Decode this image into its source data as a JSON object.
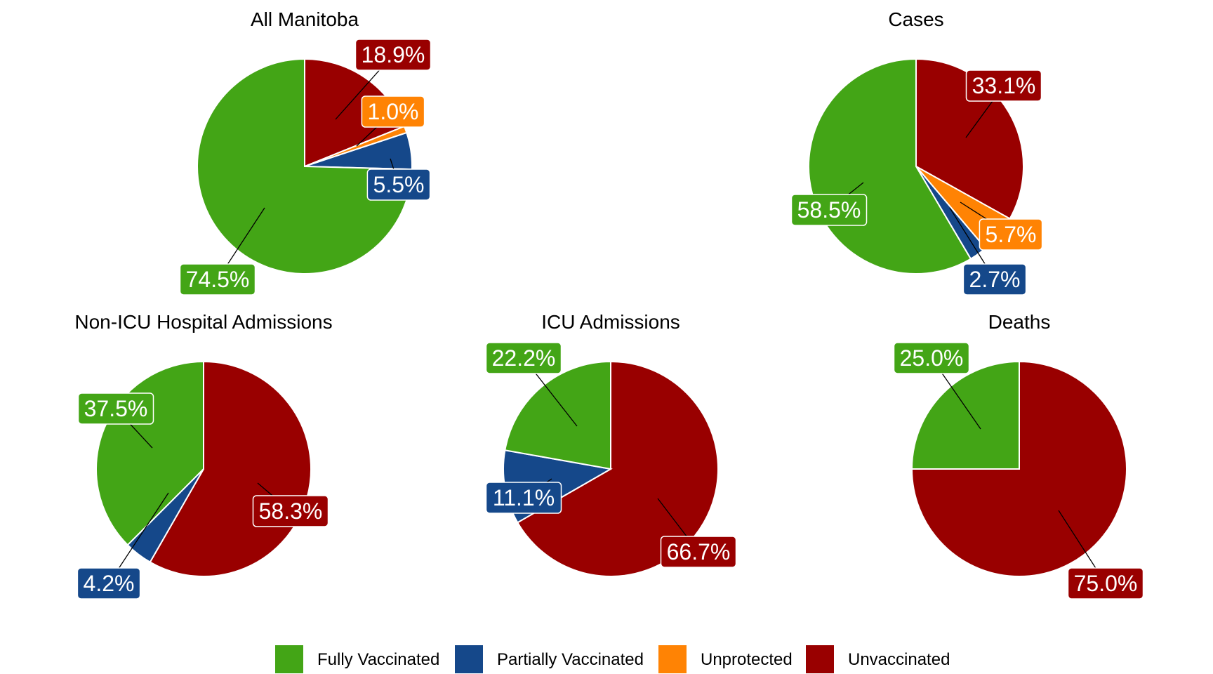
{
  "chart_data": {
    "type": "pie",
    "series_order": [
      "Fully Vaccinated",
      "Partially Vaccinated",
      "Unprotected",
      "Unvaccinated"
    ],
    "colors": {
      "Fully Vaccinated": "#43a516",
      "Partially Vaccinated": "#15488a",
      "Unprotected": "#ff8304",
      "Unvaccinated": "#990000"
    },
    "legend": {
      "position": "bottom",
      "entries": [
        "Fully Vaccinated",
        "Partially Vaccinated",
        "Unprotected",
        "Unvaccinated"
      ]
    },
    "panels": [
      {
        "title": "All Manitoba",
        "slices": [
          {
            "category": "Unvaccinated",
            "value": 18.9,
            "label": "18.9%"
          },
          {
            "category": "Unprotected",
            "value": 1.0,
            "label": "1.0%"
          },
          {
            "category": "Partially Vaccinated",
            "value": 5.5,
            "label": "5.5%"
          },
          {
            "category": "Fully Vaccinated",
            "value": 74.5,
            "label": "74.5%"
          }
        ]
      },
      {
        "title": "Cases",
        "slices": [
          {
            "category": "Unvaccinated",
            "value": 33.1,
            "label": "33.1%"
          },
          {
            "category": "Unprotected",
            "value": 5.7,
            "label": "5.7%"
          },
          {
            "category": "Partially Vaccinated",
            "value": 2.7,
            "label": "2.7%"
          },
          {
            "category": "Fully Vaccinated",
            "value": 58.5,
            "label": "58.5%"
          }
        ]
      },
      {
        "title": "Non-ICU Hospital Admissions",
        "slices": [
          {
            "category": "Unvaccinated",
            "value": 58.3,
            "label": "58.3%"
          },
          {
            "category": "Partially Vaccinated",
            "value": 4.2,
            "label": "4.2%"
          },
          {
            "category": "Fully Vaccinated",
            "value": 37.5,
            "label": "37.5%"
          }
        ]
      },
      {
        "title": "ICU Admissions",
        "slices": [
          {
            "category": "Unvaccinated",
            "value": 66.7,
            "label": "66.7%"
          },
          {
            "category": "Partially Vaccinated",
            "value": 11.1,
            "label": "11.1%"
          },
          {
            "category": "Fully Vaccinated",
            "value": 22.2,
            "label": "22.2%"
          }
        ]
      },
      {
        "title": "Deaths",
        "slices": [
          {
            "category": "Unvaccinated",
            "value": 75.0,
            "label": "75.0%"
          },
          {
            "category": "Fully Vaccinated",
            "value": 25.0,
            "label": "25.0%"
          }
        ]
      }
    ]
  }
}
